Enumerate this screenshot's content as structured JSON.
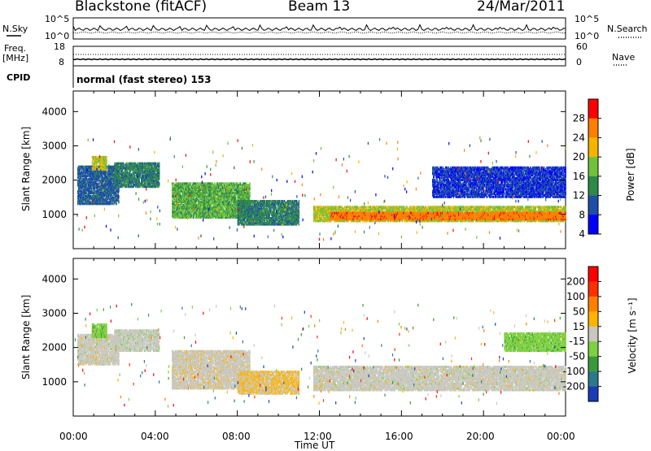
{
  "header": {
    "station": "Blackstone (fitACF)",
    "beam": "Beam 13",
    "date": "24/Mar/2011"
  },
  "top_panels": {
    "nsky_label": "N.Sky",
    "nsky_ticks": [
      "10^5",
      "10^0"
    ],
    "nsearch_label": "N.Search",
    "nsearch_ticks": [
      "10^5",
      "10^0"
    ],
    "freq_label": "Freq.",
    "freq_unit": "[MHz]",
    "freq_ticks": [
      "18",
      "8"
    ],
    "nave_label": "Nave",
    "nave_ticks": [
      "60",
      "0"
    ],
    "cpid_label": "CPID",
    "cpid_value": "normal (fast stereo) 153"
  },
  "power_panel": {
    "ylabel": "Slant Range [km]",
    "colorbar_label": "Power [dB]",
    "colorbar_ticks": [
      "28",
      "24",
      "20",
      "16",
      "12",
      "8",
      "4"
    ],
    "colors": [
      "#0000ff",
      "#1d4fa8",
      "#2f8a4a",
      "#6fc23a",
      "#f5b400",
      "#ff7f00",
      "#ff0000"
    ]
  },
  "velocity_panel": {
    "ylabel": "Slant Range [km]",
    "colorbar_label": "Velocity [m s⁻¹]",
    "colorbar_ticks": [
      "200",
      "100",
      "50",
      "15",
      "-15",
      "-50",
      "-100",
      "-200"
    ],
    "colors": [
      "#1a3cb4",
      "#2a7a8a",
      "#3a9a3a",
      "#7fd040",
      "#c8c8c0",
      "#ffb400",
      "#ff8000",
      "#ff3000",
      "#ff0000"
    ]
  },
  "xaxis": {
    "label": "Time UT"
  },
  "chart_data": [
    {
      "type": "heatmap",
      "title": "Power",
      "x_ticks": [
        "00:00",
        "04:00",
        "08:00",
        "12:00",
        "16:00",
        "20:00",
        "00:00"
      ],
      "xlim_hours": [
        0,
        24
      ],
      "ylim": [
        0,
        4600
      ],
      "y_ticks": [
        1000,
        2000,
        3000,
        4000
      ],
      "ylabel": "Slant Range [km]",
      "color_range": [
        0,
        32
      ],
      "regions": [
        {
          "t0": 0.2,
          "t1": 2.2,
          "r0": 1300,
          "r1": 2400,
          "val": 8
        },
        {
          "t0": 0.9,
          "t1": 1.6,
          "r0": 2300,
          "r1": 2700,
          "val": 18
        },
        {
          "t0": 2.0,
          "t1": 4.2,
          "r0": 1800,
          "r1": 2500,
          "val": 10
        },
        {
          "t0": 4.8,
          "t1": 8.6,
          "r0": 900,
          "r1": 1900,
          "val": 14
        },
        {
          "t0": 8.0,
          "t1": 11.0,
          "r0": 700,
          "r1": 1400,
          "val": 10
        },
        {
          "t0": 11.7,
          "t1": 24.0,
          "r0": 800,
          "r1": 1250,
          "val": 18
        },
        {
          "t0": 12.5,
          "t1": 24.0,
          "r0": 850,
          "r1": 1050,
          "val": 26
        },
        {
          "t0": 17.5,
          "t1": 24.0,
          "r0": 1500,
          "r1": 2400,
          "val": 5
        }
      ]
    },
    {
      "type": "heatmap",
      "title": "Velocity",
      "x_ticks": [
        "00:00",
        "04:00",
        "08:00",
        "12:00",
        "16:00",
        "20:00",
        "00:00"
      ],
      "xlim_hours": [
        0,
        24
      ],
      "ylim": [
        0,
        4600
      ],
      "y_ticks": [
        1000,
        2000,
        3000,
        4000
      ],
      "ylabel": "Slant Range [km]",
      "color_range": [
        -250,
        250
      ],
      "regions": [
        {
          "t0": 0.2,
          "t1": 2.2,
          "r0": 1500,
          "r1": 2400,
          "val": 0
        },
        {
          "t0": 0.9,
          "t1": 1.6,
          "r0": 2300,
          "r1": 2700,
          "val": -60
        },
        {
          "t0": 2.0,
          "t1": 4.2,
          "r0": 1900,
          "r1": 2500,
          "val": -5
        },
        {
          "t0": 4.8,
          "t1": 8.6,
          "r0": 800,
          "r1": 1900,
          "val": 5
        },
        {
          "t0": 8.0,
          "t1": 11.0,
          "r0": 650,
          "r1": 1300,
          "val": 30
        },
        {
          "t0": 11.7,
          "t1": 24.0,
          "r0": 750,
          "r1": 1450,
          "val": 0
        },
        {
          "t0": 21.0,
          "t1": 24.0,
          "r0": 1900,
          "r1": 2400,
          "val": -60
        }
      ]
    }
  ]
}
